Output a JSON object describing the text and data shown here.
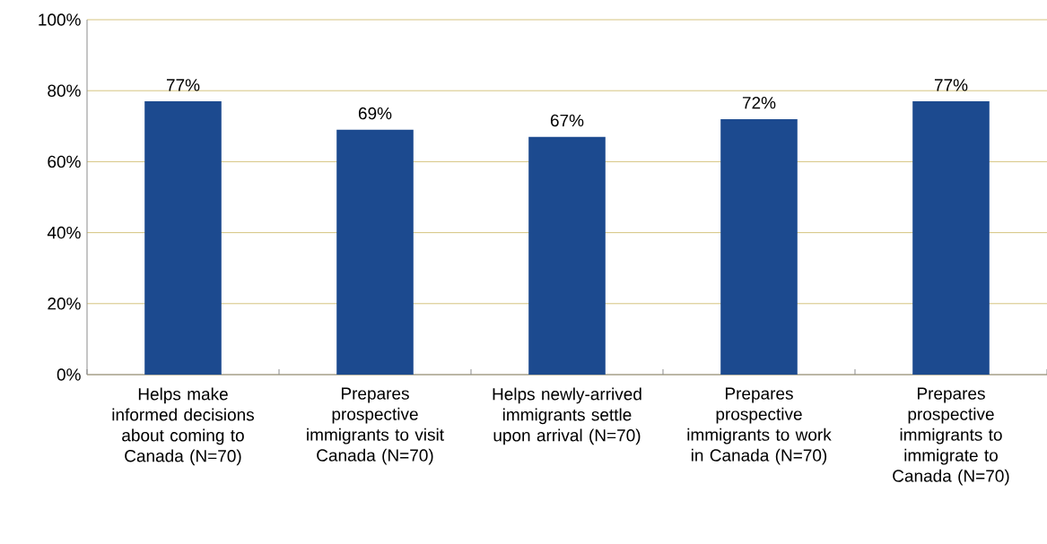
{
  "chart_data": {
    "type": "bar",
    "categories": [
      "Helps make informed decisions about coming to Canada (N=70)",
      "Prepares prospective immigrants to visit Canada (N=70)",
      "Helps newly-arrived immigrants settle upon arrival (N=70)",
      "Prepares prospective immigrants to work in Canada (N=70)",
      "Prepares prospective immigrants to immigrate to Canada (N=70)"
    ],
    "values": [
      77,
      69,
      67,
      72,
      77
    ],
    "value_labels": [
      "77%",
      "69%",
      "67%",
      "72%",
      "77%"
    ],
    "color": "#1c4a8f",
    "ylim": [
      0,
      100
    ],
    "yticks": [
      {
        "value": 0,
        "label": "0%"
      },
      {
        "value": 20,
        "label": "20%"
      },
      {
        "value": 40,
        "label": "40%"
      },
      {
        "value": 60,
        "label": "60%"
      },
      {
        "value": 80,
        "label": "80%"
      },
      {
        "value": 100,
        "label": "100%"
      }
    ],
    "grid": "y"
  }
}
